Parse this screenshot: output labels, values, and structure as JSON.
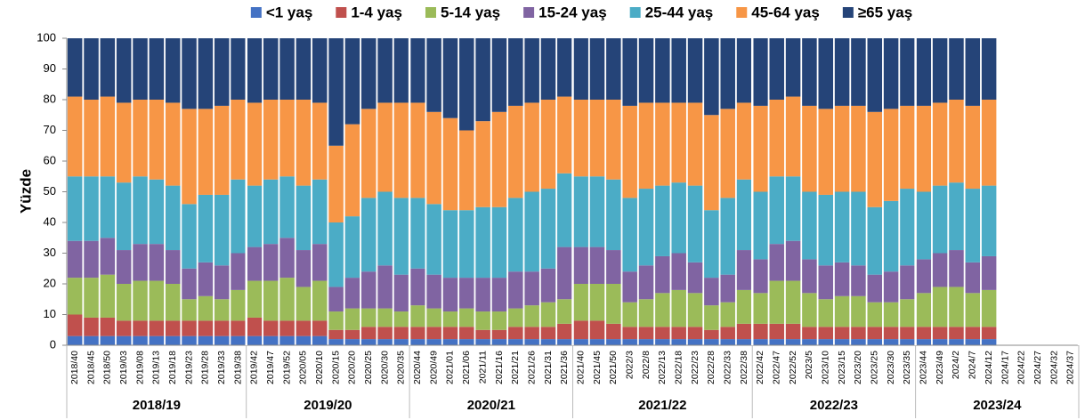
{
  "chart_data": {
    "type": "stacked_bar",
    "y_label": "Yüzde",
    "categories": [
      "2018/40",
      "2018/45",
      "2018/50",
      "2019/03",
      "2019/08",
      "2019/13",
      "2019/18",
      "2019/23",
      "2019/28",
      "2019/33",
      "2019/38",
      "2019/42",
      "2019/47",
      "2019/52",
      "2020/05",
      "2020/10",
      "2020/15",
      "2020/20",
      "2020/25",
      "2020/30",
      "2020/35",
      "2020/44",
      "2020/49",
      "2021/01",
      "2021/06",
      "2021/11",
      "2021/16",
      "2021/21",
      "2021/26",
      "2021/31",
      "2021/36",
      "2021/40",
      "2021/45",
      "2021/50",
      "2022/3",
      "2022/8",
      "2022/13",
      "2022/18",
      "2022/23",
      "2022/28",
      "2022/33",
      "2022/38",
      "2022/42",
      "2022/47",
      "2022/52",
      "2023/5",
      "2023/10",
      "2023/15",
      "2023/20",
      "2023/25",
      "2023/30",
      "2023/35",
      "2023/44",
      "2023/49",
      "2024/2",
      "2024/7",
      "2024/12",
      "2024/17",
      "2024/22",
      "2024/27",
      "2024/32",
      "2024/37"
    ],
    "seasons": [
      {
        "label": "2018/19",
        "from": "2018/40",
        "to": "2019/38"
      },
      {
        "label": "2019/20",
        "from": "2019/42",
        "to": "2020/35"
      },
      {
        "label": "2020/21",
        "from": "2020/44",
        "to": "2021/36"
      },
      {
        "label": "2021/22",
        "from": "2021/40",
        "to": "2022/38"
      },
      {
        "label": "2022/23",
        "from": "2022/42",
        "to": "2023/35"
      },
      {
        "label": "2023/24",
        "from": "2023/44",
        "to": "2024/37"
      }
    ],
    "series": [
      {
        "name": "<1 yaş",
        "color": "#4472c4",
        "values": [
          3,
          3,
          3,
          3,
          3,
          3,
          3,
          3,
          3,
          3,
          3,
          3,
          3,
          3,
          3,
          3,
          2,
          2,
          2,
          2,
          2,
          2,
          2,
          2,
          2,
          2,
          2,
          2,
          2,
          2,
          2,
          2,
          2,
          2,
          2,
          2,
          2,
          2,
          2,
          2,
          2,
          2,
          2,
          2,
          2,
          2,
          2,
          2,
          2,
          2,
          2,
          2,
          2,
          2,
          2,
          2,
          2,
          null,
          null,
          null,
          null,
          null
        ]
      },
      {
        "name": "1-4 yaş",
        "color": "#c0504d",
        "values": [
          7,
          6,
          6,
          5,
          5,
          5,
          5,
          5,
          5,
          5,
          5,
          6,
          5,
          5,
          5,
          5,
          3,
          3,
          4,
          4,
          4,
          4,
          4,
          4,
          4,
          3,
          3,
          4,
          4,
          4,
          5,
          6,
          6,
          5,
          4,
          4,
          4,
          4,
          4,
          3,
          4,
          5,
          5,
          5,
          5,
          4,
          4,
          4,
          4,
          4,
          4,
          4,
          4,
          4,
          4,
          4,
          4,
          null,
          null,
          null,
          null,
          null
        ]
      },
      {
        "name": "5-14 yaş",
        "color": "#9bbb59",
        "values": [
          12,
          13,
          14,
          12,
          13,
          13,
          12,
          7,
          8,
          7,
          10,
          12,
          13,
          14,
          11,
          13,
          6,
          7,
          6,
          6,
          5,
          7,
          6,
          5,
          6,
          6,
          6,
          6,
          7,
          8,
          8,
          12,
          12,
          13,
          8,
          9,
          11,
          12,
          11,
          8,
          8,
          11,
          10,
          14,
          14,
          11,
          9,
          10,
          10,
          8,
          8,
          9,
          11,
          13,
          13,
          11,
          12,
          null,
          null,
          null,
          null,
          null
        ]
      },
      {
        "name": "15-24 yaş",
        "color": "#8064a2",
        "values": [
          12,
          12,
          12,
          11,
          12,
          12,
          11,
          10,
          11,
          11,
          12,
          11,
          12,
          13,
          12,
          12,
          8,
          10,
          12,
          14,
          12,
          12,
          11,
          11,
          10,
          11,
          11,
          12,
          11,
          11,
          17,
          12,
          12,
          11,
          10,
          11,
          12,
          12,
          10,
          9,
          9,
          13,
          11,
          12,
          13,
          11,
          11,
          11,
          10,
          9,
          10,
          11,
          11,
          11,
          12,
          10,
          11,
          null,
          null,
          null,
          null,
          null
        ]
      },
      {
        "name": "25-44 yaş",
        "color": "#4bacc6",
        "values": [
          21,
          21,
          20,
          22,
          22,
          21,
          21,
          21,
          22,
          23,
          24,
          20,
          21,
          20,
          21,
          21,
          21,
          20,
          24,
          24,
          25,
          23,
          23,
          22,
          22,
          23,
          23,
          24,
          26,
          26,
          24,
          23,
          23,
          23,
          24,
          25,
          23,
          23,
          25,
          22,
          25,
          23,
          22,
          22,
          21,
          22,
          23,
          23,
          24,
          22,
          23,
          25,
          22,
          22,
          22,
          24,
          23,
          null,
          null,
          null,
          null,
          null
        ]
      },
      {
        "name": "45-64 yaş",
        "color": "#f79646",
        "values": [
          26,
          25,
          26,
          26,
          25,
          26,
          27,
          31,
          28,
          29,
          26,
          27,
          26,
          25,
          28,
          25,
          25,
          30,
          29,
          29,
          31,
          31,
          30,
          30,
          26,
          28,
          31,
          30,
          29,
          29,
          25,
          25,
          25,
          26,
          30,
          28,
          27,
          26,
          27,
          31,
          29,
          25,
          28,
          25,
          26,
          28,
          28,
          28,
          28,
          31,
          30,
          27,
          28,
          27,
          27,
          27,
          28,
          null,
          null,
          null,
          null,
          null
        ]
      },
      {
        "name": "≥65 yaş",
        "color": "#254478",
        "values": [
          19,
          20,
          19,
          21,
          20,
          20,
          21,
          23,
          23,
          22,
          20,
          21,
          20,
          20,
          20,
          21,
          35,
          28,
          23,
          21,
          21,
          21,
          24,
          26,
          30,
          27,
          24,
          22,
          21,
          20,
          19,
          20,
          20,
          20,
          22,
          21,
          21,
          21,
          21,
          25,
          23,
          21,
          22,
          20,
          19,
          22,
          23,
          22,
          22,
          24,
          23,
          22,
          22,
          21,
          20,
          22,
          20,
          null,
          null,
          null,
          null,
          null
        ]
      }
    ],
    "ylim": [
      0,
      100
    ],
    "yticks": [
      0,
      10,
      20,
      30,
      40,
      50,
      60,
      70,
      80,
      90,
      100
    ],
    "grid": false,
    "legend": "top"
  }
}
